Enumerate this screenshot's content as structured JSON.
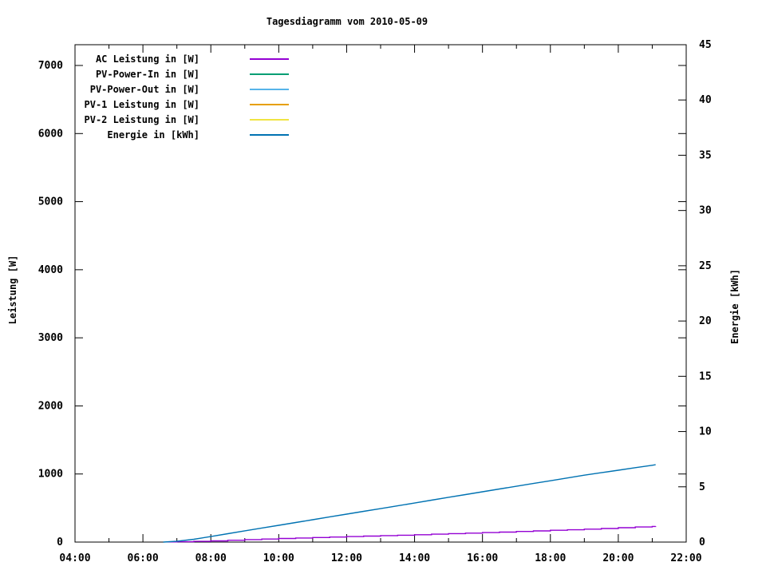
{
  "chart_data": {
    "type": "line",
    "title": "Tagesdiagramm vom 2010-05-09",
    "background_color": "#ffffff",
    "axis_color": "#000000",
    "grid": false,
    "legend_position": "top-left-inside",
    "x_axis": {
      "unit": "time",
      "range_hours": [
        4,
        22
      ],
      "major_ticks": [
        {
          "h": 4,
          "label": "04:00"
        },
        {
          "h": 6,
          "label": "06:00"
        },
        {
          "h": 8,
          "label": "08:00"
        },
        {
          "h": 10,
          "label": "10:00"
        },
        {
          "h": 12,
          "label": "12:00"
        },
        {
          "h": 14,
          "label": "14:00"
        },
        {
          "h": 16,
          "label": "16:00"
        },
        {
          "h": 18,
          "label": "18:00"
        },
        {
          "h": 20,
          "label": "20:00"
        },
        {
          "h": 22,
          "label": "22:00"
        }
      ],
      "minor_tick_hours": [
        5,
        7,
        9,
        11,
        13,
        15,
        17,
        19,
        21
      ]
    },
    "y1_axis": {
      "label": "Leistung [W]",
      "range": [
        0,
        7300
      ],
      "ticks": [
        {
          "v": 0,
          "label": "0"
        },
        {
          "v": 1000,
          "label": "1000"
        },
        {
          "v": 2000,
          "label": "2000"
        },
        {
          "v": 3000,
          "label": "3000"
        },
        {
          "v": 4000,
          "label": "4000"
        },
        {
          "v": 5000,
          "label": "5000"
        },
        {
          "v": 6000,
          "label": "6000"
        },
        {
          "v": 7000,
          "label": "7000"
        }
      ]
    },
    "y2_axis": {
      "label": "Energie [kWh]",
      "range": [
        0,
        45
      ],
      "ticks": [
        {
          "v": 0,
          "label": "0"
        },
        {
          "v": 5,
          "label": "5"
        },
        {
          "v": 10,
          "label": "10"
        },
        {
          "v": 15,
          "label": "15"
        },
        {
          "v": 20,
          "label": "20"
        },
        {
          "v": 25,
          "label": "25"
        },
        {
          "v": 30,
          "label": "30"
        },
        {
          "v": 35,
          "label": "35"
        },
        {
          "v": 40,
          "label": "40"
        },
        {
          "v": 45,
          "label": "45"
        }
      ]
    },
    "series": [
      {
        "name": "AC Leistung in [W]",
        "color": "#9400D3",
        "axis": "y1",
        "step": true,
        "points": [
          [
            6.7,
            2
          ],
          [
            7,
            5
          ],
          [
            7.5,
            10
          ],
          [
            8,
            18
          ],
          [
            8.5,
            27
          ],
          [
            9,
            36
          ],
          [
            9.5,
            45
          ],
          [
            10,
            53
          ],
          [
            10.5,
            60
          ],
          [
            11,
            67
          ],
          [
            11.5,
            74
          ],
          [
            12,
            81
          ],
          [
            12.5,
            88
          ],
          [
            13,
            95
          ],
          [
            13.5,
            101
          ],
          [
            14,
            108
          ],
          [
            14.5,
            116
          ],
          [
            15,
            124
          ],
          [
            15.5,
            131
          ],
          [
            16,
            139
          ],
          [
            16.5,
            147
          ],
          [
            17,
            156
          ],
          [
            17.5,
            164
          ],
          [
            18,
            173
          ],
          [
            18.5,
            181
          ],
          [
            19,
            190
          ],
          [
            19.5,
            199
          ],
          [
            20,
            211
          ],
          [
            20.5,
            222
          ],
          [
            21,
            230
          ],
          [
            21.1,
            232
          ]
        ]
      },
      {
        "name": "PV-Power-In in [W]",
        "color": "#009E73",
        "axis": "y1",
        "step": false,
        "points": []
      },
      {
        "name": "PV-Power-Out in [W]",
        "color": "#56B4E9",
        "axis": "y1",
        "step": false,
        "points": []
      },
      {
        "name": "PV-1 Leistung in [W]",
        "color": "#E69F00",
        "axis": "y1",
        "step": false,
        "points": []
      },
      {
        "name": "PV-2 Leistung in [W]",
        "color": "#F0E442",
        "axis": "y1",
        "step": false,
        "points": []
      },
      {
        "name": "Energie in [kWh]",
        "color": "#0072B2",
        "axis": "y2",
        "step": false,
        "points": [
          [
            6.6,
            0
          ],
          [
            7,
            0.08
          ],
          [
            7.5,
            0.25
          ],
          [
            8,
            0.5
          ],
          [
            8.5,
            0.76
          ],
          [
            9,
            1.02
          ],
          [
            9.5,
            1.27
          ],
          [
            10,
            1.52
          ],
          [
            10.5,
            1.77
          ],
          [
            11,
            2.02
          ],
          [
            11.5,
            2.28
          ],
          [
            12,
            2.53
          ],
          [
            12.5,
            2.78
          ],
          [
            13,
            3.03
          ],
          [
            13.5,
            3.28
          ],
          [
            14,
            3.53
          ],
          [
            14.5,
            3.79
          ],
          [
            15,
            4.05
          ],
          [
            15.5,
            4.3
          ],
          [
            16,
            4.55
          ],
          [
            16.5,
            4.8
          ],
          [
            17,
            5.05
          ],
          [
            17.5,
            5.3
          ],
          [
            18,
            5.55
          ],
          [
            18.5,
            5.8
          ],
          [
            19,
            6.05
          ],
          [
            19.5,
            6.28
          ],
          [
            20,
            6.5
          ],
          [
            20.5,
            6.73
          ],
          [
            21,
            6.95
          ],
          [
            21.1,
            7.0
          ]
        ]
      }
    ]
  }
}
